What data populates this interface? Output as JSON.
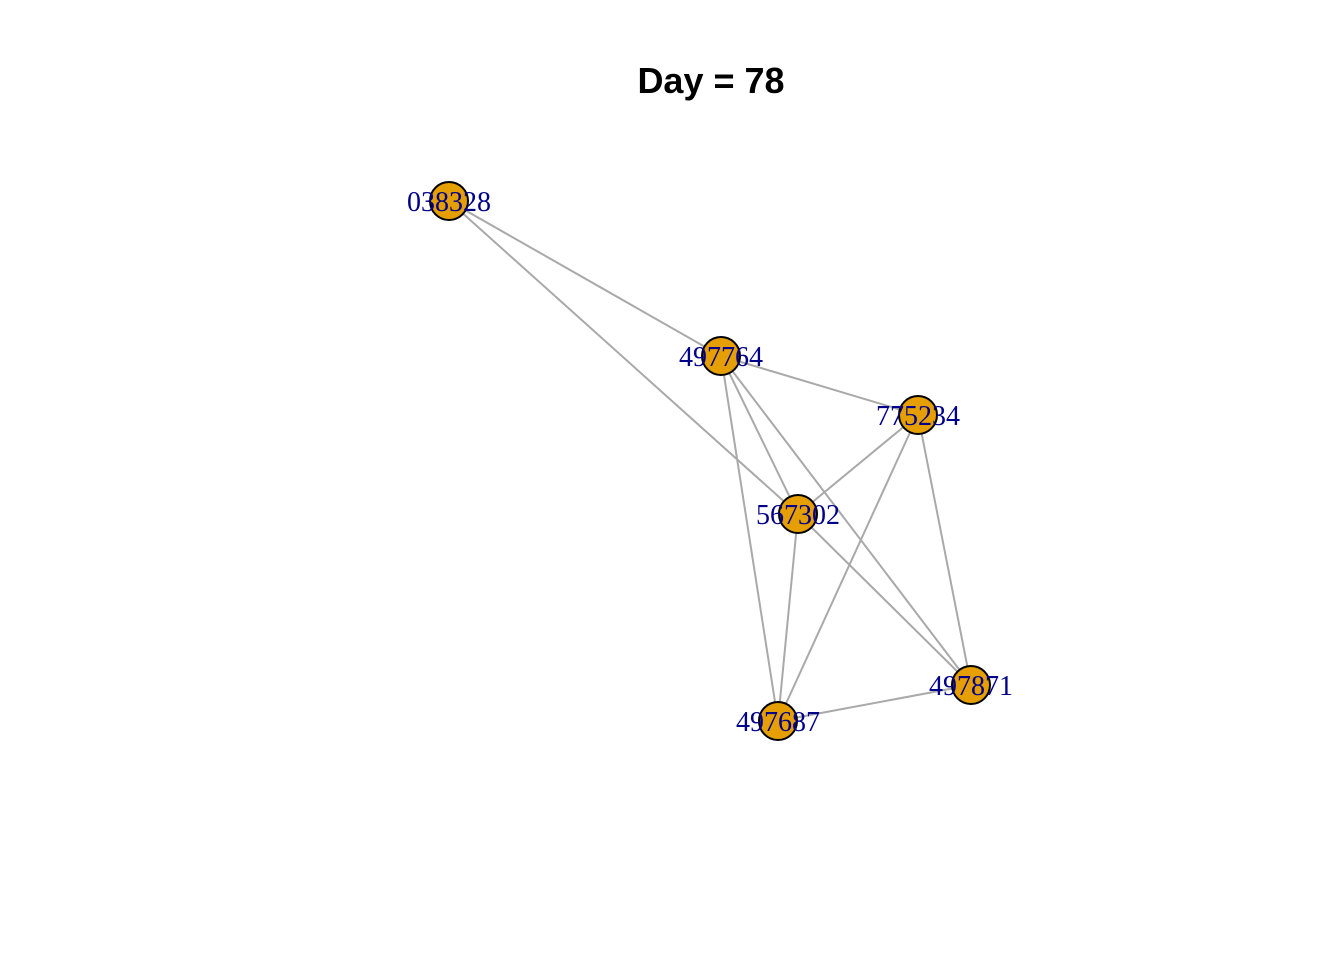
{
  "title": "Day = 78",
  "colors": {
    "node_fill": "#E69F00",
    "node_stroke": "#000000",
    "edge": "#A9A9A9",
    "label": "#00008B"
  },
  "nodes": [
    {
      "id": "038328"
    },
    {
      "id": "497764"
    },
    {
      "id": "775234"
    },
    {
      "id": "567302"
    },
    {
      "id": "497871"
    },
    {
      "id": "497687"
    }
  ],
  "edges": [
    [
      "038328",
      "497764"
    ],
    [
      "038328",
      "567302"
    ],
    [
      "497764",
      "775234"
    ],
    [
      "497764",
      "567302"
    ],
    [
      "497764",
      "497871"
    ],
    [
      "497764",
      "497687"
    ],
    [
      "775234",
      "567302"
    ],
    [
      "775234",
      "497871"
    ],
    [
      "775234",
      "497687"
    ],
    [
      "567302",
      "497871"
    ],
    [
      "567302",
      "497687"
    ],
    [
      "497871",
      "497687"
    ]
  ]
}
